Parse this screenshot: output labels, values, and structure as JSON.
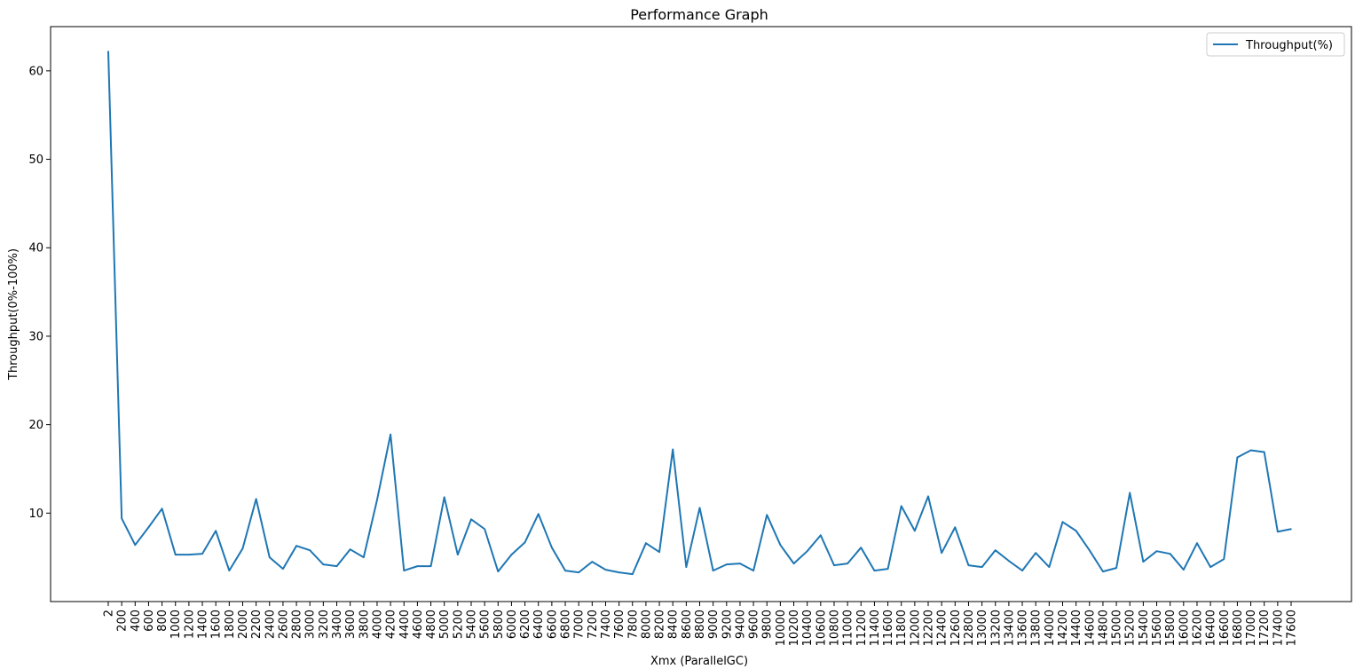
{
  "chart_data": {
    "type": "line",
    "title": "Performance Graph",
    "xlabel": "Xmx (ParallelGC)",
    "ylabel": "Throughput(0%-100%)",
    "ylim": [
      0,
      65
    ],
    "yticks": [
      10,
      20,
      30,
      40,
      50,
      60
    ],
    "grid": false,
    "legend_position": "top-right",
    "categories": [
      "2",
      "200",
      "400",
      "600",
      "800",
      "1000",
      "1200",
      "1400",
      "1600",
      "1800",
      "2000",
      "2200",
      "2400",
      "2600",
      "2800",
      "3000",
      "3200",
      "3400",
      "3600",
      "3800",
      "4000",
      "4200",
      "4400",
      "4600",
      "4800",
      "5000",
      "5200",
      "5400",
      "5600",
      "5800",
      "6000",
      "6200",
      "6400",
      "6600",
      "6800",
      "7000",
      "7200",
      "7400",
      "7600",
      "7800",
      "8000",
      "8200",
      "8400",
      "8600",
      "8800",
      "9000",
      "9200",
      "9400",
      "9600",
      "9800",
      "10000",
      "10200",
      "10400",
      "10600",
      "10800",
      "11000",
      "11200",
      "11400",
      "11600",
      "11800",
      "12000",
      "12200",
      "12400",
      "12600",
      "12800",
      "13000",
      "13200",
      "13400",
      "13600",
      "13800",
      "14000",
      "14200",
      "14400",
      "14600",
      "14800",
      "15000",
      "15200",
      "15400",
      "15600",
      "15800",
      "16000",
      "16200",
      "16400",
      "16600",
      "16800",
      "17000",
      "17200",
      "17400",
      "17600"
    ],
    "series": [
      {
        "name": "Throughput(%)",
        "color": "#1f77b4",
        "values": [
          62.2,
          9.4,
          6.4,
          8.4,
          10.5,
          5.3,
          5.3,
          5.4,
          8.0,
          3.5,
          6.0,
          11.6,
          5.0,
          3.7,
          6.3,
          5.8,
          4.2,
          4.0,
          5.9,
          5.0,
          11.5,
          18.9,
          3.5,
          4.0,
          4.0,
          11.8,
          5.3,
          9.3,
          8.2,
          3.4,
          5.3,
          6.7,
          9.9,
          6.1,
          3.5,
          3.3,
          4.5,
          3.6,
          3.3,
          3.1,
          6.6,
          5.6,
          17.2,
          3.9,
          10.6,
          3.5,
          4.2,
          4.3,
          3.5,
          9.8,
          6.4,
          4.3,
          5.7,
          7.5,
          4.1,
          4.3,
          6.1,
          3.5,
          3.7,
          10.8,
          8.0,
          11.9,
          5.5,
          8.4,
          4.1,
          3.9,
          5.8,
          4.6,
          3.5,
          5.5,
          3.9,
          9.0,
          8.0,
          5.8,
          3.4,
          3.8,
          12.3,
          4.5,
          5.7,
          5.4,
          3.6,
          6.6,
          3.9,
          4.8,
          16.3,
          17.1,
          16.9,
          7.9,
          8.2
        ]
      }
    ]
  }
}
